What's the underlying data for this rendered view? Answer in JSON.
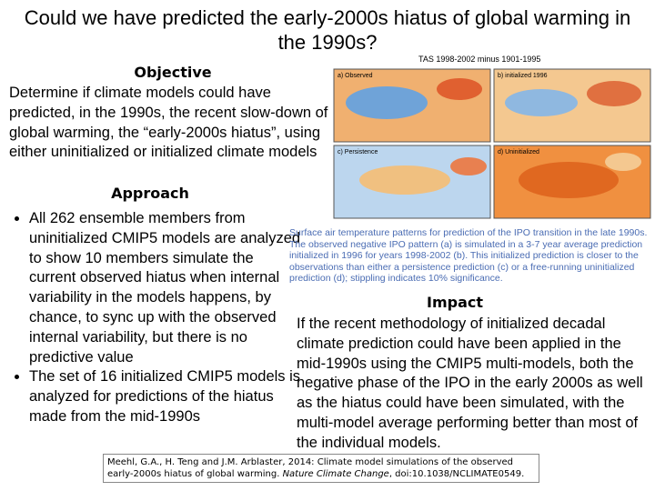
{
  "title": "Could we have predicted the early-2000s hiatus of global warming in the 1990s?",
  "objective": {
    "heading": "Objective",
    "text": "Determine if climate models could have predicted, in the 1990s, the recent slow-down of global warming, the “early-2000s hiatus”, using either uninitialized or initialized climate models"
  },
  "approach": {
    "heading": "Approach",
    "bullets": [
      "All 262 ensemble members from uninitialized CMIP5 models are analyzed to show 10 members simulate the current observed hiatus when internal variability in the models happens, by chance, to sync up with the observed internal variability, but there is no predictive value",
      "The set of 16 initialized CMIP5 models is analyzed for predictions of the hiatus made from the mid-1990s"
    ]
  },
  "figure": {
    "title": "TAS 1998-2002 minus 1901-1995",
    "panels": [
      "a) Observed",
      "b) initialized 1996",
      "c) Persistence",
      "d) Uninitialized"
    ],
    "caption": "Surface air temperature patterns for prediction of the IPO transition in the late 1990s. The observed negative IPO pattern (a) is simulated in a 3-7 year average prediction initialized in 1996 for years 1998-2002 (b). This initialized prediction is closer to the observations than either a persistence prediction (c) or a free-running uninitialized prediction (d); stippling indicates 10% significance."
  },
  "impact": {
    "heading": "Impact",
    "text": "If the recent methodology of initialized decadal climate prediction could have been applied in the mid-1990s using the CMIP5 multi-models, both the negative phase of the IPO in the early 2000s as well as the hiatus could have been simulated, with the multi-model average performing better than most of the individual models."
  },
  "citation": {
    "authors": "Meehl, G.A., H. Teng and J.M. Arblaster, 2014: Climate model simulations of the observed early-2000s hiatus of global warming.",
    "journal": "Nature Climate Change",
    "doi": ", doi:10.1038/NCLIMATE0549."
  }
}
